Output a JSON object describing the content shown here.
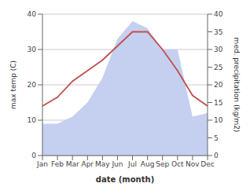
{
  "chart_data": {
    "type": "line",
    "categories": [
      "Jan",
      "Feb",
      "Mar",
      "Apr",
      "May",
      "Jun",
      "Jul",
      "Aug",
      "Sep",
      "Oct",
      "Nov",
      "Dec"
    ],
    "xlabel": "date (month)",
    "ylabel": "max temp (C)",
    "y2label": "med. precipitation (kg/m2)",
    "series": [
      {
        "type": "area",
        "color": "#c5cff0",
        "axis": "y2",
        "values": [
          9,
          9,
          11,
          15,
          22,
          33,
          38,
          36,
          30,
          30,
          11,
          12
        ]
      },
      {
        "type": "line",
        "color": "#c0504d",
        "values": [
          14,
          16.5,
          21,
          24,
          27,
          31,
          35,
          35,
          30,
          24,
          17,
          14
        ]
      }
    ],
    "ylim": [
      0,
      40
    ],
    "yticks": [
      0,
      10,
      20,
      30,
      40
    ],
    "y2lim": [
      0,
      40
    ],
    "y2ticks": [
      0,
      5,
      10,
      15,
      20,
      25,
      30,
      35,
      40
    ],
    "grid": true
  }
}
